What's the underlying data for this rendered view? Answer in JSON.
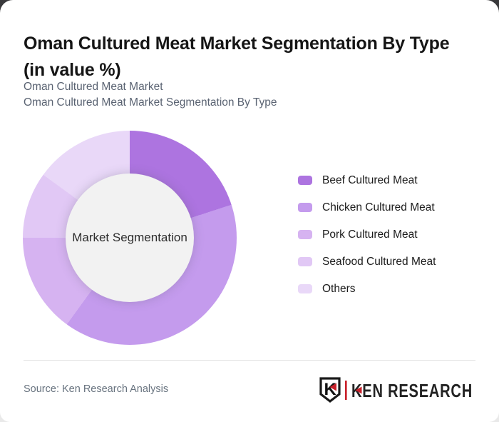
{
  "header": {
    "title_line1": "Oman Cultured Meat Market Segmentation By Type",
    "title_line2": "(in value %)",
    "subtitle_line1": "Oman Cultured Meat Market",
    "subtitle_line2": "Oman Cultured Meat Market Segmentation By Type"
  },
  "chart_data": {
    "type": "pie",
    "subtype": "donut",
    "title": "Oman Cultured Meat Market Segmentation By Type (in value %)",
    "categories": [
      "Beef Cultured Meat",
      "Chicken Cultured Meat",
      "Pork Cultured Meat",
      "Seafood Cultured Meat",
      "Others"
    ],
    "values": [
      20,
      40,
      15,
      10,
      15
    ],
    "unit": "%",
    "colors": [
      "#ad74e0",
      "#c49bed",
      "#d6b3f1",
      "#e1c8f5",
      "#e9d8f8"
    ],
    "center_label": "Market Segmentation",
    "start_angle_deg": 0,
    "direction": "clockwise",
    "inner_radius_ratio": 0.6,
    "inner_circle_color": "#f2f2f2",
    "legend_position": "right",
    "grid": false
  },
  "footer": {
    "source": "Source: Ken Research Analysis",
    "logo_badge_letter": "K",
    "logo_text": "KEN RESEARCH",
    "logo_red": "#c8202a",
    "logo_dark": "#232323"
  }
}
